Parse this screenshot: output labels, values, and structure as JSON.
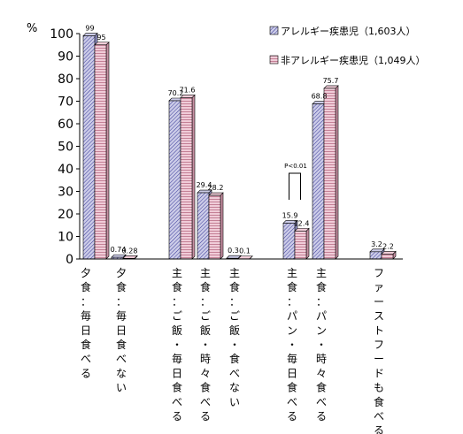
{
  "chart_data": {
    "type": "bar",
    "ylabel": "%",
    "ylim": [
      0,
      100
    ],
    "yticks": [
      0,
      10,
      20,
      30,
      40,
      50,
      60,
      70,
      80,
      90,
      100
    ],
    "grid": false,
    "legend_position": "top-right",
    "categories": [
      "夕食：毎日食べる",
      "夕食：毎日食べない",
      "主食：ご飯・毎日食べる",
      "主食：ご飯・時々食べる",
      "主食：ご飯・食べない",
      "主食：パン・毎日食べる",
      "主食：パン・時々食べる",
      "ファーストフードも食べる"
    ],
    "series": [
      {
        "name": "アレルギー疾患児（1,603人）",
        "values": [
          99,
          0.74,
          70.2,
          29.4,
          0.3,
          15.9,
          68.8,
          3.2
        ],
        "labels": [
          "99",
          "0.74",
          "70.2",
          "29.4",
          "0.3",
          "15.9",
          "68.8",
          "3.2"
        ],
        "color": "#cccce8",
        "hatch": "#3a3a99"
      },
      {
        "name": "非アレルギー疾患児（1,049人）",
        "values": [
          95,
          0.28,
          71.6,
          28.2,
          0.1,
          12.4,
          75.7,
          2.2
        ],
        "labels": [
          "95",
          "0.28",
          "71.6",
          "28.2",
          "0.1",
          "12.4",
          "75.7",
          "2.2"
        ],
        "color": "#f0ccd8",
        "hatch": "#993355"
      }
    ],
    "annotations": [
      {
        "text": "P<0.01",
        "category_index": 5
      }
    ]
  }
}
